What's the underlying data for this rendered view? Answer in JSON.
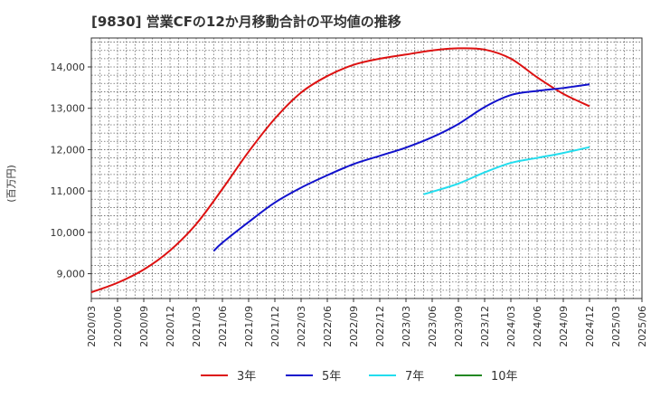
{
  "chart_data": {
    "type": "line",
    "title": "[9830]  営業CFの12か月移動合計の平均値の推移",
    "ylabel": "(百万円)",
    "xlabel": "",
    "ylim": [
      8400,
      14700
    ],
    "yticks": [
      9000,
      10000,
      11000,
      12000,
      13000,
      14000
    ],
    "ytick_labels": [
      "9,000",
      "10,000",
      "11,000",
      "12,000",
      "13,000",
      "14,000"
    ],
    "x_tick_labels": [
      "2020/03",
      "2020/06",
      "2020/09",
      "2020/12",
      "2021/03",
      "2021/06",
      "2021/09",
      "2021/12",
      "2022/03",
      "2022/06",
      "2022/09",
      "2022/12",
      "2023/03",
      "2023/06",
      "2023/09",
      "2023/12",
      "2024/03",
      "2024/06",
      "2024/09",
      "2024/12",
      "2025/03",
      "2025/06"
    ],
    "grid": true,
    "legend_position": "bottom",
    "series": [
      {
        "name": "3年",
        "color": "#dd1111",
        "x": [
          "2020/03",
          "2020/06",
          "2020/09",
          "2020/12",
          "2021/03",
          "2021/06",
          "2021/09",
          "2021/12",
          "2022/03",
          "2022/06",
          "2022/09",
          "2022/12",
          "2023/03",
          "2023/06",
          "2023/09",
          "2023/12",
          "2024/03",
          "2024/06",
          "2024/09",
          "2024/12"
        ],
        "values": [
          8550,
          8780,
          9100,
          9560,
          10200,
          11050,
          11950,
          12750,
          13380,
          13780,
          14050,
          14200,
          14300,
          14400,
          14450,
          14420,
          14200,
          13750,
          13350,
          13050
        ]
      },
      {
        "name": "5年",
        "color": "#1111cc",
        "x": [
          "2021/05",
          "2021/06",
          "2021/09",
          "2021/12",
          "2022/03",
          "2022/06",
          "2022/09",
          "2022/12",
          "2023/03",
          "2023/06",
          "2023/09",
          "2023/12",
          "2024/03",
          "2024/06",
          "2024/09",
          "2024/12"
        ],
        "values": [
          9550,
          9750,
          10250,
          10720,
          11080,
          11380,
          11650,
          11850,
          12050,
          12300,
          12620,
          13030,
          13320,
          13420,
          13490,
          13580
        ]
      },
      {
        "name": "7年",
        "color": "#22ddee",
        "x": [
          "2023/05",
          "2023/06",
          "2023/09",
          "2023/12",
          "2024/03",
          "2024/06",
          "2024/09",
          "2024/12"
        ],
        "values": [
          10920,
          10980,
          11180,
          11450,
          11680,
          11800,
          11920,
          12060
        ]
      },
      {
        "name": "10年",
        "color": "#228822",
        "x": [],
        "values": []
      }
    ]
  }
}
